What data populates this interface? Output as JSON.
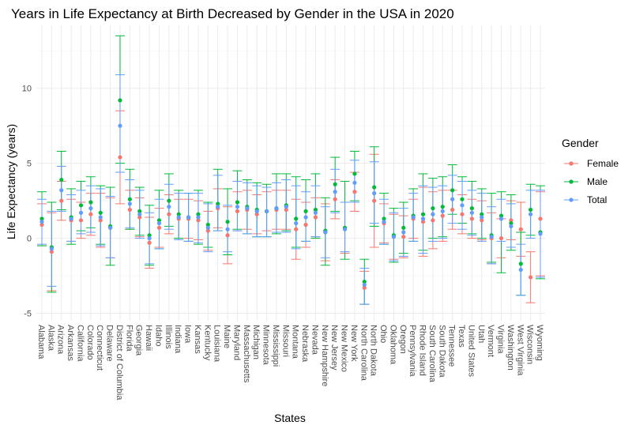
{
  "chart_data": {
    "type": "scatter",
    "title": "Years in Life Expectancy at Birth Decreased by Gender in the USA in 2020",
    "xlabel": "States",
    "ylabel": "Life Expectancy (years)",
    "ylim": [
      -5.5,
      14.2
    ],
    "yticks": [
      -5,
      0,
      5,
      10
    ],
    "grid": true,
    "legend": {
      "title": "Gender",
      "position": "right",
      "entries": [
        {
          "name": "Female",
          "color": "#F8766D"
        },
        {
          "name": "Male",
          "color": "#00BA38"
        },
        {
          "name": "Total",
          "color": "#619CFF"
        }
      ]
    },
    "categories": [
      "Alabama",
      "Alaska",
      "Arizona",
      "Arkansas",
      "California",
      "Colorado",
      "Connecticut",
      "Delaware",
      "District of Columbia",
      "Florida",
      "Georgia",
      "Hawaii",
      "Idaho",
      "Illinois",
      "Indiana",
      "Iowa",
      "Kansas",
      "Kentucky",
      "Louisiana",
      "Maine",
      "Maryland",
      "Massachusetts",
      "Michigan",
      "Minnesota",
      "Mississippi",
      "Missouri",
      "Montana",
      "Nebraska",
      "Nevada",
      "New Hampshire",
      "New Jersey",
      "New Mexico",
      "New York",
      "North Carolina",
      "North Dakota",
      "Ohio",
      "Oklahoma",
      "Oregon",
      "Pennsylvania",
      "Rhode Island",
      "South Carolina",
      "South Dakota",
      "Tennessee",
      "Texas",
      "United States",
      "Utah",
      "Vermont",
      "Virginia",
      "Washington",
      "West Virginia",
      "Wisconsin",
      "Wyoming"
    ],
    "series": [
      {
        "name": "Female",
        "values": [
          0.9,
          -0.9,
          2.5,
          1.2,
          1.2,
          1.6,
          1.2,
          0.7,
          5.4,
          1.9,
          1.4,
          -0.3,
          0.7,
          1.6,
          1.3,
          1.3,
          1.2,
          0.5,
          2.0,
          0.2,
          1.8,
          1.9,
          1.6,
          1.8,
          1.9,
          1.9,
          0.6,
          0.9,
          1.4,
          0.4,
          2.6,
          0.7,
          3.1,
          -3.3,
          2.5,
          1.0,
          0.1,
          0.1,
          1.3,
          1.1,
          1.2,
          1.5,
          1.9,
          1.6,
          1.3,
          1.2,
          0.0,
          0.0,
          1.2,
          0.6,
          -2.6,
          1.3
        ],
        "lower": [
          -0.5,
          -3.5,
          1.2,
          -0.2,
          0.0,
          0.2,
          -0.6,
          -1.3,
          2.3,
          0.6,
          0.1,
          -2.0,
          -0.6,
          0.3,
          0.0,
          0.0,
          -0.1,
          -0.8,
          0.7,
          -1.7,
          0.5,
          0.6,
          0.3,
          0.5,
          0.6,
          0.6,
          -1.4,
          -0.6,
          0.1,
          -1.5,
          1.3,
          -1.0,
          1.8,
          -4.4,
          -0.6,
          -0.3,
          -1.4,
          -1.3,
          0.0,
          -1.2,
          -0.7,
          -0.2,
          0.6,
          0.3,
          0.0,
          -0.1,
          -1.7,
          -1.3,
          -0.1,
          -1.2,
          -4.3,
          -2.5
        ],
        "upper": [
          2.3,
          1.7,
          3.8,
          2.6,
          2.4,
          3.0,
          3.0,
          2.7,
          8.5,
          3.2,
          2.7,
          1.4,
          2.0,
          2.9,
          2.6,
          2.6,
          2.5,
          1.8,
          3.3,
          2.1,
          3.1,
          3.2,
          2.9,
          3.1,
          3.2,
          3.2,
          2.6,
          2.4,
          2.7,
          2.3,
          3.9,
          2.4,
          4.4,
          -2.2,
          5.6,
          2.3,
          1.6,
          1.5,
          2.6,
          3.4,
          3.1,
          3.2,
          3.2,
          2.9,
          2.6,
          2.5,
          1.7,
          1.3,
          2.5,
          2.4,
          -0.9,
          3.1
        ]
      },
      {
        "name": "Male",
        "values": [
          1.3,
          -0.6,
          3.9,
          1.4,
          2.2,
          2.4,
          1.7,
          0.8,
          9.2,
          2.6,
          1.8,
          0.2,
          1.2,
          2.5,
          1.6,
          1.4,
          1.6,
          0.9,
          2.3,
          1.1,
          2.4,
          2.1,
          1.9,
          1.8,
          2.0,
          2.2,
          1.3,
          1.8,
          1.9,
          0.5,
          3.6,
          0.7,
          4.3,
          -2.9,
          3.4,
          1.3,
          0.2,
          0.7,
          1.5,
          1.6,
          2.0,
          2.1,
          3.2,
          2.6,
          2.0,
          1.6,
          0.2,
          1.5,
          1.0,
          -1.7,
          1.9,
          0.4
        ],
        "lower": [
          -0.5,
          -3.6,
          1.9,
          -0.4,
          0.5,
          0.7,
          -0.4,
          -1.8,
          5.0,
          0.6,
          0.2,
          -1.8,
          -0.7,
          0.8,
          0.0,
          -0.2,
          -0.4,
          -0.6,
          0.5,
          -1.1,
          0.6,
          0.3,
          0.1,
          0.1,
          0.3,
          0.5,
          -0.6,
          -0.2,
          0.0,
          -1.8,
          1.8,
          -1.4,
          2.5,
          -4.4,
          0.8,
          -0.4,
          -1.6,
          -1.0,
          -0.2,
          -0.8,
          0.0,
          0.1,
          1.6,
          1.0,
          0.3,
          0.0,
          -1.6,
          -2.3,
          -0.8,
          -3.8,
          0.2,
          -2.7
        ],
        "upper": [
          3.1,
          2.4,
          5.8,
          3.3,
          3.8,
          4.1,
          3.5,
          3.4,
          13.5,
          4.6,
          3.4,
          2.2,
          3.2,
          4.3,
          3.2,
          3.0,
          3.2,
          2.4,
          4.6,
          3.3,
          4.5,
          3.9,
          3.7,
          3.6,
          4.3,
          4.3,
          4.1,
          3.9,
          4.3,
          2.7,
          5.4,
          3.8,
          5.8,
          -1.4,
          6.1,
          3.0,
          2.0,
          2.4,
          3.3,
          4.3,
          4.0,
          4.1,
          4.9,
          4.1,
          3.8,
          3.3,
          3.0,
          3.1,
          2.9,
          0.4,
          3.6,
          3.5
        ]
      },
      {
        "name": "Total",
        "values": [
          1.1,
          -0.7,
          3.2,
          1.3,
          1.7,
          2.0,
          1.4,
          0.7,
          7.5,
          2.3,
          1.6,
          0.0,
          1.0,
          2.1,
          1.4,
          1.4,
          1.4,
          0.7,
          2.1,
          0.6,
          2.1,
          2.0,
          1.8,
          1.8,
          2.0,
          2.1,
          1.0,
          1.4,
          1.7,
          0.4,
          3.1,
          0.6,
          3.7,
          -3.1,
          3.0,
          1.1,
          0.1,
          0.4,
          1.4,
          1.3,
          1.6,
          1.8,
          2.6,
          2.2,
          1.7,
          1.4,
          0.1,
          1.3,
          0.8,
          -2.1,
          1.6,
          0.3
        ],
        "lower": [
          -0.4,
          -3.2,
          1.8,
          -0.2,
          0.3,
          0.4,
          -0.5,
          -1.3,
          4.4,
          0.7,
          0.0,
          -1.7,
          -0.7,
          0.6,
          -0.1,
          -0.2,
          -0.3,
          -0.9,
          0.5,
          -0.9,
          0.5,
          0.3,
          0.1,
          0.1,
          0.4,
          0.4,
          -0.7,
          -0.2,
          0.1,
          -1.3,
          1.7,
          -0.9,
          2.4,
          -4.4,
          1.0,
          -0.4,
          -1.5,
          -1.2,
          -0.2,
          -1.0,
          -0.2,
          0.0,
          1.0,
          0.6,
          0.2,
          -0.2,
          -1.7,
          -0.2,
          -0.6,
          -3.8,
          0.0,
          -2.6
        ],
        "upper": [
          2.6,
          1.8,
          4.8,
          2.9,
          3.2,
          3.5,
          3.3,
          2.8,
          10.9,
          3.9,
          3.2,
          1.7,
          2.6,
          3.6,
          3.0,
          3.0,
          3.0,
          2.3,
          4.2,
          2.2,
          3.8,
          3.7,
          3.5,
          3.4,
          3.7,
          3.9,
          3.5,
          3.1,
          3.5,
          2.1,
          4.6,
          2.4,
          5.2,
          -2.0,
          5.1,
          2.6,
          1.7,
          2.0,
          3.0,
          3.5,
          3.4,
          3.5,
          4.2,
          3.8,
          3.2,
          3.0,
          2.1,
          2.6,
          2.3,
          -0.4,
          3.2,
          3.2
        ]
      }
    ]
  }
}
